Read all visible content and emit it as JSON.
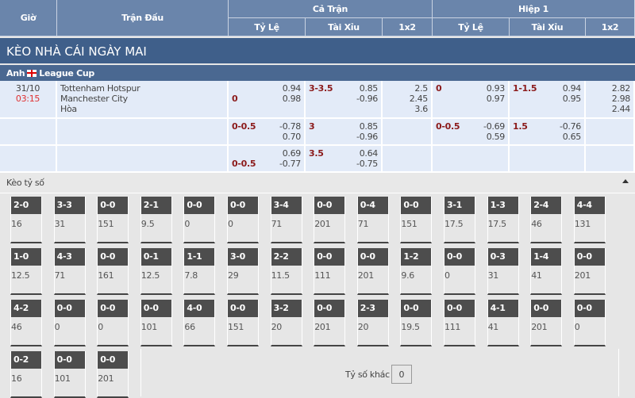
{
  "header": {
    "time": "Giờ",
    "match": "Trận Đấu",
    "full": "Cả Trận",
    "half": "Hiệp 1",
    "cols": [
      "Tỷ Lệ",
      "Tài Xỉu",
      "1x2",
      "Tỷ Lệ",
      "Tài Xỉu",
      "1x2"
    ]
  },
  "title": "KÈO NHÀ CÁI NGÀY MAI",
  "league": {
    "country": "Anh",
    "name": "League Cup",
    "flag_icon": "england-flag-icon"
  },
  "match": {
    "date": "31/10",
    "time": "03:15",
    "home": "Tottenham Hotspur",
    "away": "Manchester City",
    "draw": "Hòa"
  },
  "rows": [
    {
      "hc": "0",
      "hc_pos": "low",
      "hc_o": [
        "0.94",
        "0.98"
      ],
      "ou": "3-3.5",
      "ou_o": [
        "0.85",
        "-0.96"
      ],
      "x12": [
        "2.5",
        "2.45",
        "3.6"
      ],
      "h_hc": "0",
      "h_hc_o": [
        "0.93",
        "0.97"
      ],
      "h_ou": "1-1.5",
      "h_ou_o": [
        "0.94",
        "0.95"
      ],
      "h_x12": [
        "2.82",
        "2.98",
        "2.44"
      ]
    },
    {
      "hc": "0-0.5",
      "hc_o": [
        "-0.78",
        "0.70"
      ],
      "ou": "3",
      "ou_o": [
        "0.85",
        "-0.96"
      ],
      "h_hc": "0-0.5",
      "h_hc_o": [
        "-0.69",
        "0.59"
      ],
      "h_ou": "1.5",
      "h_ou_o": [
        "-0.76",
        "0.65"
      ]
    },
    {
      "hc": "0-0.5",
      "hc_o": [
        "0.69",
        "-0.77"
      ],
      "ou": "3.5",
      "ou_o": [
        "0.64",
        "-0.75"
      ]
    }
  ],
  "scores": {
    "title": "Kèo tỷ số",
    "other_label": "Tỷ số khác",
    "other_value": "0",
    "items": [
      [
        "2-0",
        "16"
      ],
      [
        "3-3",
        "31"
      ],
      [
        "0-0",
        "151"
      ],
      [
        "2-1",
        "9.5"
      ],
      [
        "0-0",
        "0"
      ],
      [
        "0-0",
        "0"
      ],
      [
        "3-4",
        "71"
      ],
      [
        "0-0",
        "201"
      ],
      [
        "0-4",
        "71"
      ],
      [
        "0-0",
        "151"
      ],
      [
        "3-1",
        "17.5"
      ],
      [
        "1-3",
        "17.5"
      ],
      [
        "2-4",
        "46"
      ],
      [
        "4-4",
        "131"
      ],
      [
        "1-0",
        "12.5"
      ],
      [
        "4-3",
        "71"
      ],
      [
        "0-0",
        "161"
      ],
      [
        "0-1",
        "12.5"
      ],
      [
        "1-1",
        "7.8"
      ],
      [
        "3-0",
        "29"
      ],
      [
        "2-2",
        "11.5"
      ],
      [
        "0-0",
        "111"
      ],
      [
        "0-0",
        "201"
      ],
      [
        "1-2",
        "9.6"
      ],
      [
        "0-0",
        "0"
      ],
      [
        "0-3",
        "31"
      ],
      [
        "1-4",
        "41"
      ],
      [
        "0-0",
        "201"
      ],
      [
        "4-2",
        "46"
      ],
      [
        "0-0",
        "0"
      ],
      [
        "0-0",
        "0"
      ],
      [
        "0-0",
        "101"
      ],
      [
        "4-0",
        "66"
      ],
      [
        "0-0",
        "151"
      ],
      [
        "3-2",
        "20"
      ],
      [
        "0-0",
        "201"
      ],
      [
        "2-3",
        "20"
      ],
      [
        "0-0",
        "19.5"
      ],
      [
        "0-0",
        "111"
      ],
      [
        "4-1",
        "41"
      ],
      [
        "0-0",
        "201"
      ],
      [
        "0-0",
        "0"
      ],
      [
        "0-2",
        "16"
      ],
      [
        "0-0",
        "101"
      ],
      [
        "0-0",
        "201"
      ]
    ]
  }
}
